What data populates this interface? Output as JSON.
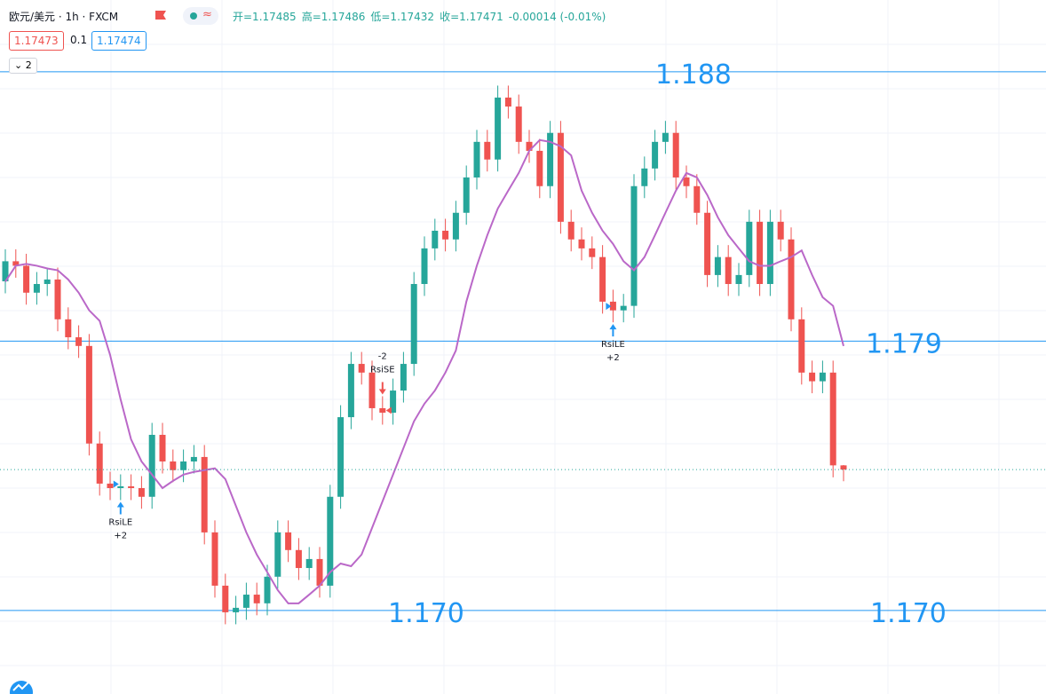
{
  "header": {
    "symbol": "欧元/美元 · 1h · FXCM",
    "ohlc": [
      "开=1.17485",
      "高=1.17486",
      "低=1.17432",
      "收=1.17471",
      "-0.00014 (-0.01%)"
    ],
    "sell": "1.17473",
    "spread": "0.1",
    "buy": "1.17474",
    "indicators": "2"
  },
  "chart_data": {
    "type": "candlestick",
    "up_color": "#26a69a",
    "down_color": "#ef5350",
    "ylim": [
      1.16721,
      1.1904
    ],
    "open": [
      1.181,
      1.18167,
      1.18152,
      1.18062,
      1.18091,
      1.18106,
      1.17973,
      1.17913,
      1.17884,
      1.17558,
      1.17424,
      1.17409,
      1.17415,
      1.17409,
      1.1738,
      1.17587,
      1.17498,
      1.17469,
      1.17498,
      1.17513,
      1.17261,
      1.17083,
      1.16994,
      1.17009,
      1.17053,
      1.17024,
      1.17113,
      1.17261,
      1.17202,
      1.17142,
      1.17172,
      1.17083,
      1.1738,
      1.17646,
      1.17824,
      1.17795,
      1.17676,
      1.17661,
      1.17735,
      1.17824,
      1.18091,
      1.1821,
      1.18269,
      1.1824,
      1.18329,
      1.18447,
      1.18566,
      1.18507,
      1.18714,
      1.18684,
      1.18566,
      1.18536,
      1.18418,
      1.18596,
      1.18299,
      1.1824,
      1.1821,
      1.18181,
      1.18032,
      1.18003,
      1.18018,
      1.18418,
      1.18477,
      1.18566,
      1.18596,
      1.18447,
      1.18418,
      1.18329,
      1.18121,
      1.18181,
      1.18091,
      1.18121,
      1.18299,
      1.18091,
      1.18299,
      1.1824,
      1.17973,
      1.17795,
      1.17766,
      1.17795,
      1.17485
    ],
    "high": [
      1.18207,
      1.18207,
      1.18192,
      1.18131,
      1.18146,
      1.18146,
      1.18013,
      1.17953,
      1.17924,
      1.17598,
      1.17464,
      1.17455,
      1.17455,
      1.17449,
      1.17627,
      1.17627,
      1.17538,
      1.17538,
      1.17553,
      1.17553,
      1.17301,
      1.17123,
      1.17049,
      1.17093,
      1.17093,
      1.17153,
      1.17301,
      1.17301,
      1.17242,
      1.17212,
      1.17212,
      1.1742,
      1.17686,
      1.17864,
      1.17864,
      1.17835,
      1.17716,
      1.17775,
      1.17864,
      1.18131,
      1.1825,
      1.18309,
      1.18309,
      1.18369,
      1.18487,
      1.18606,
      1.18606,
      1.18754,
      1.18754,
      1.18724,
      1.18606,
      1.18576,
      1.18636,
      1.18636,
      1.18339,
      1.1828,
      1.1825,
      1.18221,
      1.18072,
      1.18058,
      1.18458,
      1.18517,
      1.18606,
      1.18636,
      1.18636,
      1.18487,
      1.18458,
      1.18369,
      1.18221,
      1.18221,
      1.18161,
      1.18339,
      1.18339,
      1.18339,
      1.18339,
      1.1828,
      1.18013,
      1.17835,
      1.17835,
      1.17835,
      1.17486
    ],
    "low": [
      1.1806,
      1.18112,
      1.18022,
      1.18022,
      1.18051,
      1.17933,
      1.17873,
      1.17844,
      1.17518,
      1.17384,
      1.17369,
      1.17369,
      1.17369,
      1.1734,
      1.1734,
      1.17458,
      1.17429,
      1.17429,
      1.17458,
      1.17221,
      1.17043,
      1.16954,
      1.16954,
      1.16969,
      1.16984,
      1.16984,
      1.17073,
      1.17162,
      1.17102,
      1.17102,
      1.17043,
      1.17043,
      1.1734,
      1.17606,
      1.17755,
      1.17636,
      1.17621,
      1.17621,
      1.17695,
      1.17784,
      1.18051,
      1.1817,
      1.182,
      1.182,
      1.18289,
      1.18407,
      1.18467,
      1.18467,
      1.18644,
      1.18526,
      1.18496,
      1.18378,
      1.18378,
      1.18259,
      1.182,
      1.1817,
      1.18141,
      1.17992,
      1.17963,
      1.17963,
      1.17978,
      1.18378,
      1.18437,
      1.18526,
      1.18407,
      1.18378,
      1.18289,
      1.18081,
      1.18081,
      1.18051,
      1.18051,
      1.18081,
      1.18051,
      1.18051,
      1.182,
      1.17933,
      1.17755,
      1.17726,
      1.17726,
      1.17445,
      1.17432
    ],
    "close": [
      1.18167,
      1.18152,
      1.18062,
      1.18091,
      1.18106,
      1.17973,
      1.17913,
      1.17884,
      1.17558,
      1.17424,
      1.17409,
      1.17415,
      1.17409,
      1.1738,
      1.17587,
      1.17498,
      1.17469,
      1.17498,
      1.17513,
      1.17261,
      1.17083,
      1.16994,
      1.17009,
      1.17053,
      1.17024,
      1.17113,
      1.17261,
      1.17202,
      1.17142,
      1.17172,
      1.17083,
      1.1738,
      1.17646,
      1.17824,
      1.17795,
      1.17676,
      1.17661,
      1.17735,
      1.17824,
      1.18091,
      1.1821,
      1.18269,
      1.1824,
      1.18329,
      1.18447,
      1.18566,
      1.18507,
      1.18714,
      1.18684,
      1.18566,
      1.18536,
      1.18418,
      1.18596,
      1.18299,
      1.1824,
      1.1821,
      1.18181,
      1.18032,
      1.18003,
      1.18018,
      1.18418,
      1.18477,
      1.18566,
      1.18596,
      1.18447,
      1.18418,
      1.18329,
      1.18121,
      1.18181,
      1.18091,
      1.18121,
      1.18299,
      1.18091,
      1.18299,
      1.1824,
      1.17973,
      1.17795,
      1.17766,
      1.17795,
      1.17485,
      1.17471
    ],
    "ma": {
      "color": "#ba68c8",
      "values": [
        1.18099,
        1.18152,
        1.18158,
        1.18152,
        1.18143,
        1.18137,
        1.18106,
        1.18062,
        1.18003,
        1.17968,
        1.17854,
        1.17706,
        1.17572,
        1.17498,
        1.17454,
        1.17409,
        1.17433,
        1.17454,
        1.17463,
        1.17469,
        1.17475,
        1.17439,
        1.1735,
        1.17261,
        1.17187,
        1.17128,
        1.17068,
        1.17024,
        1.17024,
        1.17053,
        1.17083,
        1.17128,
        1.17157,
        1.17148,
        1.17187,
        1.17276,
        1.17365,
        1.17454,
        1.17543,
        1.17632,
        1.17691,
        1.17735,
        1.17795,
        1.17869,
        1.18032,
        1.18152,
        1.18254,
        1.18343,
        1.18403,
        1.18462,
        1.18536,
        1.18572,
        1.18566,
        1.18551,
        1.18521,
        1.18403,
        1.18329,
        1.18269,
        1.18225,
        1.18167,
        1.18137,
        1.18181,
        1.18254,
        1.18329,
        1.18403,
        1.18462,
        1.18447,
        1.18388,
        1.18314,
        1.18254,
        1.1821,
        1.18167,
        1.18152,
        1.18152,
        1.18167,
        1.18181,
        1.18203,
        1.18121,
        1.18047,
        1.18018,
        1.17884
      ]
    },
    "horizontal_lines": [
      {
        "value": 1.188,
        "label": "1.188"
      },
      {
        "value": 1.179,
        "label": "1.179"
      },
      {
        "value": 1.17,
        "label": "1.170"
      }
    ],
    "annotations": [
      {
        "index": 11,
        "position": "below",
        "lines": [
          "RsiLE",
          "+2"
        ]
      },
      {
        "index": 36,
        "position": "above",
        "lines": [
          "-2",
          "RsiSE"
        ]
      },
      {
        "index": 58,
        "position": "below",
        "lines": [
          "RsiLE",
          "+2"
        ]
      }
    ],
    "last_price_line": true
  }
}
